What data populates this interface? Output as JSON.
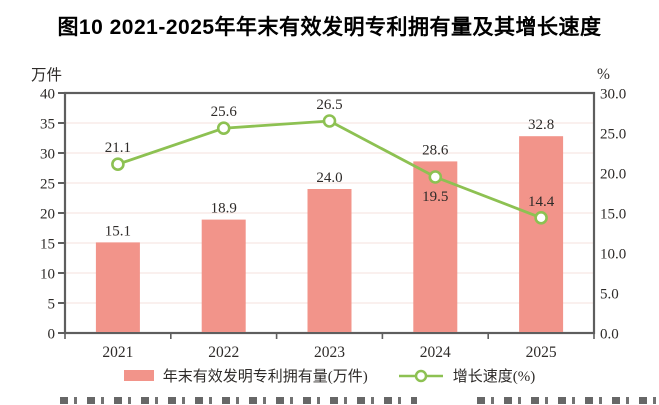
{
  "title": "图10 2021-2025年年末有效发明专利拥有量及其增长速度",
  "legend": {
    "bar_label": "年末有效发明专利拥有量(万件)",
    "line_label": "增长速度(%)"
  },
  "colors": {
    "bar": "#F2948A",
    "line": "#8DC152",
    "text": "#2e2b29",
    "label_text": "#262220",
    "border": "#5e5e5e",
    "grid": "#f6e6e3",
    "background": "#ffffff"
  },
  "chart_data": {
    "type": "bar+line combo",
    "title": "图10 2021-2025年年末有效发明专利拥有量及其增长速度",
    "categories": [
      "2021",
      "2022",
      "2023",
      "2024",
      "2025"
    ],
    "series": [
      {
        "name": "年末有效发明专利拥有量(万件)",
        "type": "bar",
        "axis": "left",
        "values": [
          15.1,
          18.9,
          24.0,
          28.6,
          32.8
        ],
        "labels": [
          "15.1",
          "18.9",
          "24.0",
          "28.6",
          "32.8"
        ],
        "color": "#F2948A"
      },
      {
        "name": "增长速度(%)",
        "type": "line",
        "axis": "right",
        "marker": "open-circle",
        "values": [
          21.1,
          25.6,
          26.5,
          19.5,
          14.4
        ],
        "labels": [
          "21.1",
          "25.6",
          "26.5",
          "19.5",
          "14.4"
        ],
        "label_position": [
          "above",
          "above",
          "above",
          "below",
          "above"
        ],
        "color": "#8DC152"
      }
    ],
    "left_axis": {
      "unit": "万件",
      "min": 0,
      "max": 40,
      "step": 5,
      "tick_values": [
        0,
        5,
        10,
        15,
        20,
        25,
        30,
        35,
        40
      ],
      "tick_labels": [
        "0",
        "5",
        "10",
        "15",
        "20",
        "25",
        "30",
        "35",
        "40"
      ]
    },
    "right_axis": {
      "unit": "%",
      "min": 0,
      "max": 30,
      "step": 5,
      "tick_values": [
        0,
        5,
        10,
        15,
        20,
        25,
        30
      ],
      "tick_labels": [
        "0.0",
        "5.0",
        "10.0",
        "15.0",
        "20.0",
        "25.0",
        "30.0"
      ]
    },
    "grid": true,
    "legend_position": "bottom"
  }
}
